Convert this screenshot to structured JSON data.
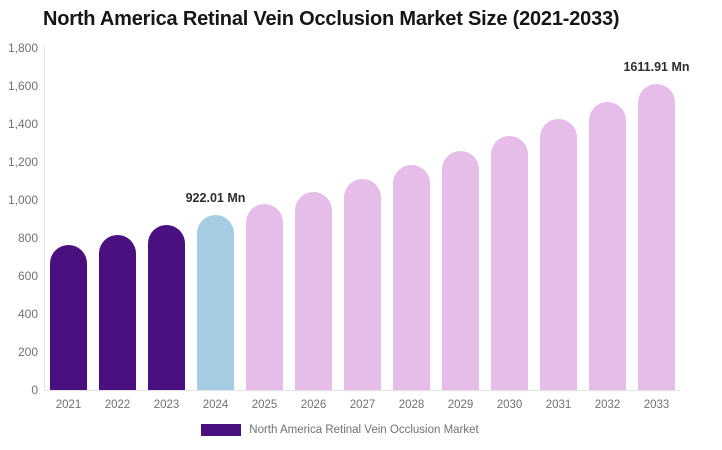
{
  "title": "North America Retinal Vein Occlusion Market Size (2021-2033)",
  "legend": {
    "label": "North America Retinal Vein Occlusion Market",
    "marker_color": "#4b1080"
  },
  "colors": {
    "historical_bar": "#4b1080",
    "current_year_bar": "#a5cce3",
    "forecast_bar": "#e6bce8",
    "axis_line": "#e3e3e3",
    "tick_text": "#6e7275",
    "data_label_text": "#2d2d2d",
    "title_text": "#161616"
  },
  "chart_data": {
    "type": "bar",
    "title": "North America Retinal Vein Occlusion Market Size (2021-2033)",
    "unit": "Mn",
    "series_name": "North America Retinal Vein Occlusion Market",
    "categories": [
      "2021",
      "2022",
      "2023",
      "2024",
      "2025",
      "2026",
      "2027",
      "2028",
      "2029",
      "2030",
      "2031",
      "2032",
      "2033"
    ],
    "values": [
      765,
      814,
      866,
      922.01,
      981,
      1044,
      1111,
      1182,
      1258,
      1338,
      1424,
      1515,
      1611.91
    ],
    "bar_colors": [
      "#4b1080",
      "#4b1080",
      "#4b1080",
      "#a5cce3",
      "#e6bce8",
      "#e6bce8",
      "#e6bce8",
      "#e6bce8",
      "#e6bce8",
      "#e6bce8",
      "#e6bce8",
      "#e6bce8",
      "#e6bce8"
    ],
    "labeled_points": [
      {
        "category": "2024",
        "text": "922.01 Mn"
      },
      {
        "category": "2033",
        "text": "1611.91 Mn"
      }
    ],
    "xlabel": "",
    "ylabel": "",
    "ylim": [
      0,
      1800
    ],
    "y_tick_labels": [
      "0",
      "200",
      "400",
      "600",
      "800",
      "1,000",
      "1,200",
      "1,400",
      "1,600",
      "1,800"
    ],
    "grid": false,
    "legend_position": "bottom"
  }
}
